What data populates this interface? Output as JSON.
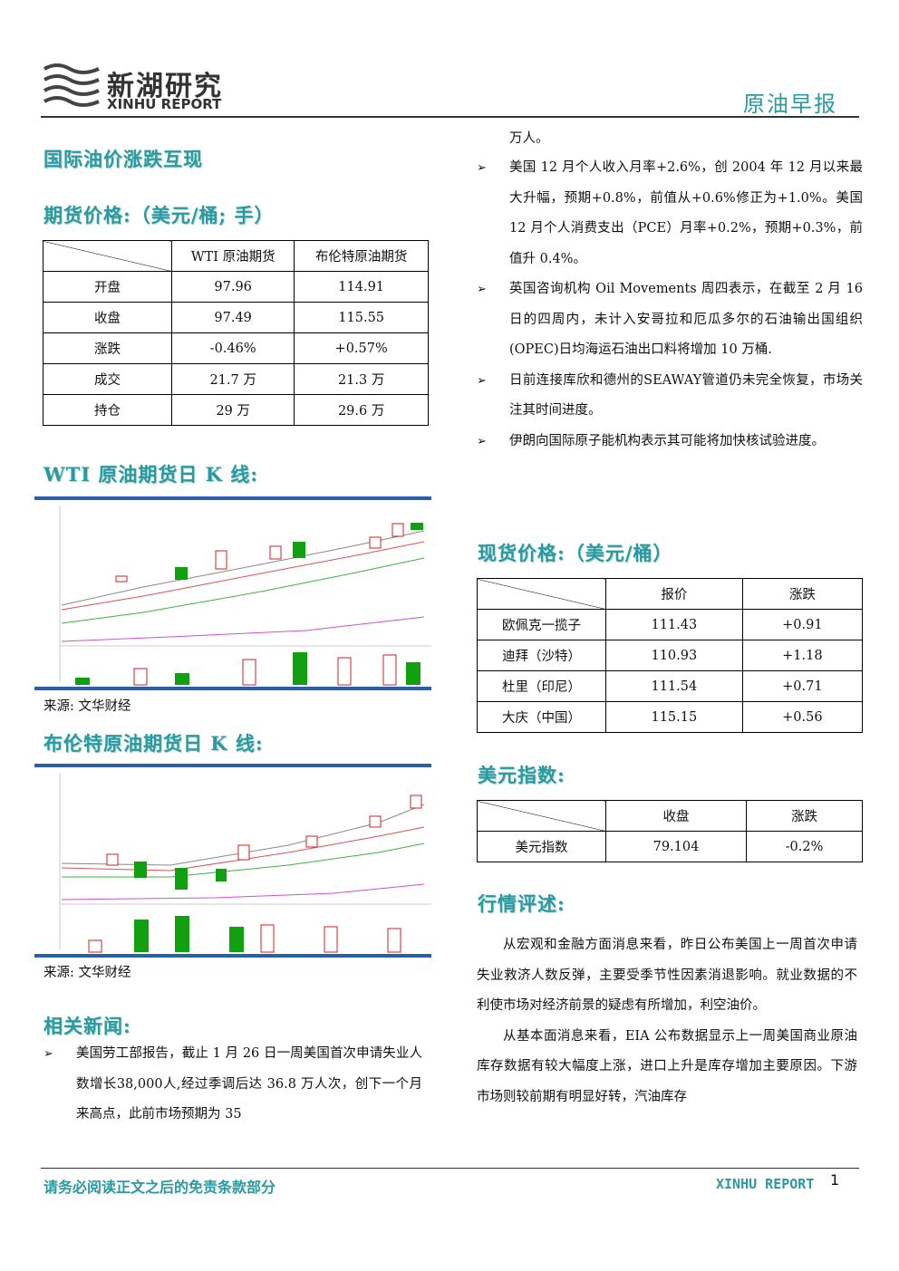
{
  "header": {
    "logo_cn": "新湖研究",
    "logo_en": "XINHU REPORT",
    "report_type": "原油早报"
  },
  "left": {
    "headline": "国际油价涨跌互现",
    "futures": {
      "title": "期货价格:（美元/桶; 手）",
      "columns": [
        "WTI 原油期货",
        "布伦特原油期货"
      ],
      "rows": [
        [
          "开盘",
          "97.96",
          "114.91"
        ],
        [
          "收盘",
          "97.49",
          "115.55"
        ],
        [
          "涨跌",
          "-0.46%",
          "+0.57%"
        ],
        [
          "成交",
          "21.7 万",
          "21.3 万"
        ],
        [
          "持仓",
          "29 万",
          "29.6 万"
        ]
      ]
    },
    "wti_chart": {
      "title": "WTI 原油期货日 K 线:",
      "source": "来源: 文华财经"
    },
    "brent_chart": {
      "title": "布伦特原油期货日 K 线:",
      "source": "来源: 文华财经"
    },
    "news_title": "相关新闻:",
    "news": [
      "美国劳工部报告，截止 1 月 26 日一周美国首次申请失业人数增长38,000人,经过季调后达 36.8 万人次，创下一个月来高点，此前市场预期为 35"
    ]
  },
  "right": {
    "news_continued": "万人。",
    "news": [
      "美国 12 月个人收入月率+2.6%，创 2004 年 12 月以来最大升幅，预期+0.8%，前值从+0.6%修正为+1.0%。美国 12 月个人消费支出（PCE）月率+0.2%，预期+0.3%，前值升 0.4%。",
      "英国咨询机构 Oil Movements 周四表示，在截至 2 月 16 日的四周内，未计入安哥拉和厄瓜多尔的石油输出国组织(OPEC)日均海运石油出口料将增加 10 万桶.",
      "日前连接库欣和德州的SEAWAY管道仍未完全恢复，市场关注其时间进度。",
      "伊朗向国际原子能机构表示其可能将加快核试验进度。"
    ],
    "spot": {
      "title": "现货价格:（美元/桶）",
      "columns": [
        "报价",
        "涨跌"
      ],
      "rows": [
        [
          "欧佩克一揽子",
          "111.43",
          "+0.91"
        ],
        [
          "迪拜（沙特）",
          "110.93",
          "+1.18"
        ],
        [
          "杜里（印尼）",
          "111.54",
          "+0.71"
        ],
        [
          "大庆（中国）",
          "115.15",
          "+0.56"
        ]
      ]
    },
    "dollar": {
      "title": "美元指数:",
      "columns": [
        "收盘",
        "涨跌"
      ],
      "rows": [
        [
          "美元指数",
          "79.104",
          "-0.2%"
        ]
      ]
    },
    "commentary": {
      "title": "行情评述:",
      "paragraphs": [
        "从宏观和金融方面消息来看，昨日公布美国上一周首次申请失业救济人数反弹，主要受季节性因素消退影响。就业数据的不利使市场对经济前景的疑虑有所增加，利空油价。",
        "从基本面消息来看，EIA 公布数据显示上一周美国商业原油库存数据有较大幅度上涨，进口上升是库存增加主要原因。下游市场则较前期有明显好转，汽油库存"
      ]
    }
  },
  "footer": {
    "disclaimer": "请务必阅读正文之后的免责条款部分",
    "brand": "XINHU REPORT",
    "page": "1"
  }
}
